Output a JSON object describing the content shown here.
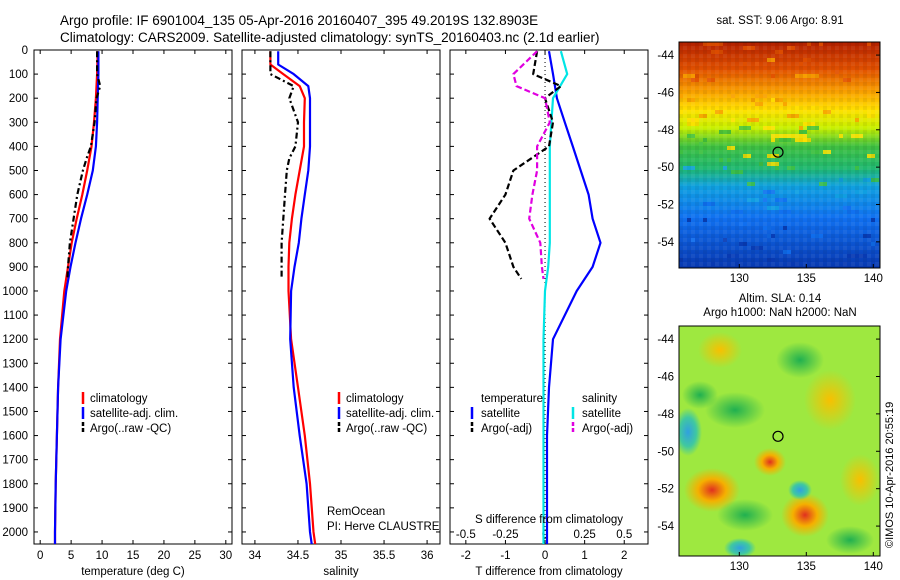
{
  "header": {
    "line1": "Argo profile: IF 6901004_135 05-Apr-2016 20160407_395 49.2019S 132.8903E",
    "line2": "Climatology: CARS2009. Satellite-adjusted climatology: synTS_20160403.nc (2.1d earlier)"
  },
  "colors": {
    "climatology": "#ff0000",
    "satellite": "#0000ff",
    "argo": "#000000",
    "sat_salinity": "#00e5e5",
    "argo_salinity_diff": "#e000e0"
  },
  "chart_data": [
    {
      "type": "line",
      "xlabel": "temperature (deg C)",
      "xlim": [
        -1,
        31
      ],
      "ylim": [
        2050,
        0
      ],
      "xticks": [
        "0",
        "5",
        "10",
        "15",
        "20",
        "25",
        "30"
      ],
      "yticks": [
        "0",
        "100",
        "200",
        "300",
        "400",
        "500",
        "600",
        "700",
        "800",
        "900",
        "1000",
        "1100",
        "1200",
        "1300",
        "1400",
        "1500",
        "1600",
        "1700",
        "1800",
        "1900",
        "2000"
      ],
      "legend": [
        "climatology",
        "satellite-adj. clim.",
        "Argo(..raw -QC)"
      ],
      "series": [
        {
          "name": "climatology",
          "depth": [
            5,
            100,
            200,
            300,
            400,
            500,
            600,
            700,
            800,
            900,
            1000,
            1200,
            1400,
            1600,
            1800,
            2000,
            2050
          ],
          "values": [
            9.3,
            9.2,
            9.0,
            8.7,
            8.3,
            7.6,
            6.8,
            5.9,
            5.1,
            4.5,
            3.9,
            3.2,
            2.9,
            2.7,
            2.5,
            2.4,
            2.4
          ]
        },
        {
          "name": "satellite-adj. clim.",
          "depth": [
            5,
            100,
            200,
            300,
            400,
            500,
            600,
            700,
            800,
            900,
            1000,
            1200,
            1400,
            1600,
            1800,
            2000,
            2050
          ],
          "values": [
            9.4,
            9.4,
            9.3,
            9.2,
            9.0,
            8.5,
            7.6,
            6.6,
            5.7,
            4.9,
            4.2,
            3.3,
            2.9,
            2.7,
            2.5,
            2.4,
            2.4
          ]
        },
        {
          "name": "Argo(..raw -QC)",
          "depth": [
            5,
            100,
            150,
            200,
            300,
            400,
            450,
            500,
            600,
            700,
            800,
            900,
            950
          ],
          "values": [
            9.2,
            9.2,
            9.7,
            9.1,
            8.8,
            8.2,
            7.5,
            6.9,
            6.0,
            5.4,
            4.8,
            4.5,
            4.4
          ]
        }
      ]
    },
    {
      "type": "line",
      "xlabel": "salinity",
      "xlim": [
        33.85,
        36.15
      ],
      "ylim": [
        2050,
        0
      ],
      "xticks": [
        "34",
        "34.5",
        "35",
        "35.5",
        "36"
      ],
      "legend": [
        "climatology",
        "satellite-adj. clim.",
        "Argo(..raw -QC)"
      ],
      "annotations": [
        "RemOcean",
        "PI: Herve CLAUSTRE"
      ],
      "series": [
        {
          "name": "climatology",
          "depth": [
            5,
            60,
            100,
            150,
            200,
            300,
            400,
            500,
            600,
            700,
            800,
            900,
            1000,
            1200,
            1400,
            1600,
            1800,
            2000,
            2050
          ],
          "values": [
            34.18,
            34.18,
            34.33,
            34.52,
            34.58,
            34.57,
            34.57,
            34.52,
            34.47,
            34.43,
            34.4,
            34.39,
            34.39,
            34.42,
            34.5,
            34.58,
            34.64,
            34.68,
            34.7
          ]
        },
        {
          "name": "satellite-adj. clim.",
          "depth": [
            5,
            60,
            100,
            150,
            200,
            300,
            400,
            500,
            600,
            700,
            800,
            900,
            1000,
            1200,
            1400,
            1600,
            1800,
            2000,
            2050
          ],
          "values": [
            34.27,
            34.27,
            34.45,
            34.62,
            34.64,
            34.64,
            34.64,
            34.62,
            34.58,
            34.54,
            34.51,
            34.46,
            34.42,
            34.41,
            34.45,
            34.52,
            34.6,
            34.64,
            34.66
          ]
        },
        {
          "name": "Argo(..raw -QC)",
          "depth": [
            5,
            50,
            100,
            150,
            200,
            300,
            400,
            450,
            500,
            600,
            700,
            800,
            900,
            950
          ],
          "values": [
            34.18,
            34.18,
            34.18,
            34.45,
            34.4,
            34.5,
            34.47,
            34.4,
            34.37,
            34.35,
            34.33,
            34.31,
            34.31,
            34.31
          ]
        }
      ]
    },
    {
      "type": "line",
      "xlabel": "T difference from climatology",
      "xlabel_top": "S difference from climatology",
      "xlim": [
        -2.4,
        2.6
      ],
      "ylim": [
        2050,
        0
      ],
      "xticks": [
        "-2",
        "-1",
        "0",
        "1",
        "2"
      ],
      "xticks_top": [
        "-0.5",
        "-0.25",
        "0",
        "0.25",
        "0.5"
      ],
      "legend": [
        {
          "group": "temperature",
          "items": [
            "satellite",
            "Argo(-adj)"
          ]
        },
        {
          "group": "salinity",
          "items": [
            "satellite",
            "Argo(-adj)"
          ]
        }
      ],
      "series": [
        {
          "name": "temperature satellite",
          "depth": [
            5,
            100,
            200,
            300,
            400,
            500,
            600,
            700,
            800,
            900,
            1000,
            1200,
            1400,
            1600,
            1800,
            2000,
            2050
          ],
          "values": [
            0.1,
            0.2,
            0.3,
            0.5,
            0.7,
            0.9,
            1.1,
            1.2,
            1.4,
            1.2,
            0.8,
            0.2,
            0.1,
            0.05,
            0.05,
            0.05,
            0.05
          ]
        },
        {
          "name": "salinity satellite",
          "depth": [
            5,
            100,
            200,
            300,
            400,
            500,
            600,
            700,
            800,
            900,
            1000,
            1200,
            1400,
            1600,
            1800,
            2000,
            2050
          ],
          "values": [
            0.1,
            0.14,
            0.05,
            0.04,
            0.03,
            0.03,
            0.03,
            0.03,
            0.03,
            0.02,
            0.0,
            -0.01,
            -0.01,
            -0.01,
            -0.01,
            -0.01,
            -0.01
          ]
        },
        {
          "name": "temperature Argo(-adj)",
          "depth": [
            5,
            100,
            150,
            200,
            300,
            400,
            500,
            600,
            700,
            800,
            900,
            950
          ],
          "values": [
            -0.2,
            -0.3,
            0.4,
            0.0,
            0.2,
            0.1,
            -0.8,
            -1.0,
            -1.4,
            -1.0,
            -0.8,
            -0.6
          ]
        },
        {
          "name": "salinity Argo(-adj)",
          "depth": [
            5,
            100,
            150,
            200,
            300,
            400,
            500,
            600,
            700,
            800,
            900,
            950
          ],
          "values": [
            -0.05,
            -0.2,
            -0.18,
            0.0,
            0.03,
            -0.05,
            -0.05,
            -0.08,
            -0.1,
            -0.03,
            -0.02,
            -0.01
          ]
        }
      ]
    },
    {
      "type": "heatmap",
      "title": "sat. SST: 9.06 Argo: 8.91",
      "xticks": [
        "130",
        "135",
        "140"
      ],
      "yticks": [
        "-44",
        "-46",
        "-48",
        "-50",
        "-52",
        "-54"
      ],
      "marker": {
        "lon": 132.89,
        "lat": -49.2
      }
    },
    {
      "type": "heatmap",
      "title_lines": [
        "Altim. SLA: 0.14",
        "Argo h1000: NaN h2000: NaN"
      ],
      "xticks": [
        "130",
        "135",
        "140"
      ],
      "yticks": [
        "-44",
        "-46",
        "-48",
        "-50",
        "-52",
        "-54"
      ],
      "marker": {
        "lon": 132.89,
        "lat": -49.2
      }
    }
  ],
  "credit": "©IMOS 10-Apr-2016 20:55:19"
}
